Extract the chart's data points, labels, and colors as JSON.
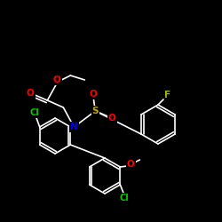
{
  "background": "#000000",
  "atom_colors": {
    "O": "#ff0000",
    "N": "#0000ee",
    "S": "#ccaa00",
    "Cl": "#00cc00",
    "F": "#99bb00"
  },
  "bond_color": "#ffffff",
  "figsize": [
    2.5,
    2.5
  ],
  "dpi": 100
}
